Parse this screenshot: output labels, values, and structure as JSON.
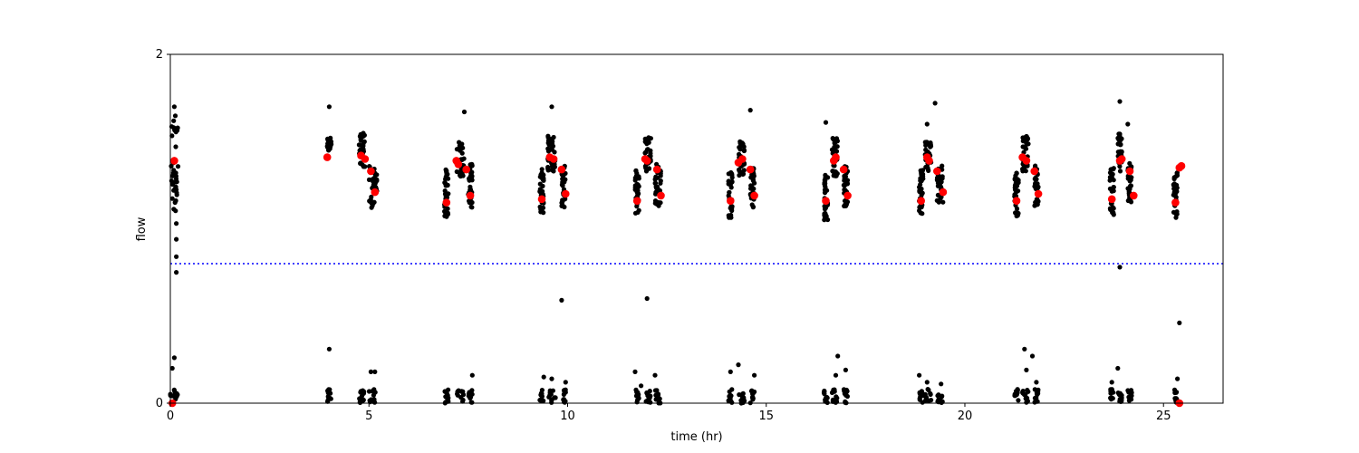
{
  "chart_data": {
    "type": "scatter",
    "title": "",
    "xlabel": "time (hr)",
    "ylabel": "flow",
    "xlim": [
      0,
      26.5
    ],
    "ylim": [
      0,
      2
    ],
    "xticks": [
      0,
      5,
      10,
      15,
      20,
      25
    ],
    "yticks": [
      0,
      2
    ],
    "grid": false,
    "threshold_line": {
      "y": 0.8,
      "color": "#0000ff",
      "style": "dotted"
    },
    "series": [
      {
        "marker_color": "#000000",
        "marker": "dot",
        "clusters": [
          {
            "x": [
              0.0,
              0.2
            ],
            "high": [
              1.1,
              1.65
            ],
            "low": [
              0.0,
              0.08
            ]
          },
          {
            "x": [
              3.95,
              4.05
            ],
            "high": [
              1.45,
              1.52
            ],
            "low": [
              0.0,
              0.08
            ]
          },
          {
            "x": [
              4.75,
              4.9
            ],
            "high": [
              1.35,
              1.55
            ],
            "low": [
              0.0,
              0.08
            ]
          },
          {
            "x": [
              5.0,
              5.2
            ],
            "high": [
              1.12,
              1.36
            ],
            "low": [
              0.0,
              0.08
            ]
          },
          {
            "x": [
              6.9,
              7.0
            ],
            "high": [
              1.06,
              1.35
            ],
            "low": [
              0.0,
              0.08
            ]
          },
          {
            "x": [
              7.2,
              7.4
            ],
            "high": [
              1.3,
              1.5
            ],
            "low": [
              0.0,
              0.08
            ]
          },
          {
            "x": [
              7.5,
              7.6
            ],
            "high": [
              1.12,
              1.37
            ],
            "low": [
              0.0,
              0.08
            ]
          },
          {
            "x": [
              9.3,
              9.4
            ],
            "high": [
              1.09,
              1.35
            ],
            "low": [
              0.0,
              0.08
            ]
          },
          {
            "x": [
              9.5,
              9.7
            ],
            "high": [
              1.33,
              1.55
            ],
            "low": [
              0.0,
              0.08
            ]
          },
          {
            "x": [
              9.85,
              9.95
            ],
            "high": [
              1.12,
              1.37
            ],
            "low": [
              0.0,
              0.08
            ]
          },
          {
            "x": [
              11.7,
              11.8
            ],
            "high": [
              1.08,
              1.34
            ],
            "low": [
              0.0,
              0.08
            ]
          },
          {
            "x": [
              11.95,
              12.1
            ],
            "high": [
              1.33,
              1.53
            ],
            "low": [
              0.0,
              0.08
            ]
          },
          {
            "x": [
              12.2,
              12.35
            ],
            "high": [
              1.13,
              1.38
            ],
            "low": [
              0.0,
              0.08
            ]
          },
          {
            "x": [
              14.05,
              14.15
            ],
            "high": [
              1.06,
              1.33
            ],
            "low": [
              0.0,
              0.08
            ]
          },
          {
            "x": [
              14.3,
              14.45
            ],
            "high": [
              1.3,
              1.5
            ],
            "low": [
              0.0,
              0.08
            ]
          },
          {
            "x": [
              14.6,
              14.7
            ],
            "high": [
              1.12,
              1.37
            ],
            "low": [
              0.0,
              0.08
            ]
          },
          {
            "x": [
              16.45,
              16.55
            ],
            "high": [
              1.05,
              1.33
            ],
            "low": [
              0.0,
              0.08
            ]
          },
          {
            "x": [
              16.65,
              16.8
            ],
            "high": [
              1.3,
              1.52
            ],
            "low": [
              0.0,
              0.08
            ]
          },
          {
            "x": [
              16.95,
              17.05
            ],
            "high": [
              1.13,
              1.37
            ],
            "low": [
              0.0,
              0.08
            ]
          },
          {
            "x": [
              18.85,
              18.95
            ],
            "high": [
              1.08,
              1.35
            ],
            "low": [
              0.0,
              0.08
            ]
          },
          {
            "x": [
              19.0,
              19.15
            ],
            "high": [
              1.33,
              1.52
            ],
            "low": [
              0.0,
              0.08
            ]
          },
          {
            "x": [
              19.3,
              19.45
            ],
            "high": [
              1.13,
              1.37
            ],
            "low": [
              0.0,
              0.08
            ]
          },
          {
            "x": [
              21.25,
              21.35
            ],
            "high": [
              1.07,
              1.32
            ],
            "low": [
              0.0,
              0.08
            ]
          },
          {
            "x": [
              21.45,
              21.6
            ],
            "high": [
              1.33,
              1.53
            ],
            "low": [
              0.0,
              0.08
            ]
          },
          {
            "x": [
              21.75,
              21.85
            ],
            "high": [
              1.13,
              1.37
            ],
            "low": [
              0.0,
              0.08
            ]
          },
          {
            "x": [
              23.65,
              23.75
            ],
            "high": [
              1.08,
              1.35
            ],
            "low": [
              0.0,
              0.08
            ]
          },
          {
            "x": [
              23.85,
              23.95
            ],
            "high": [
              1.33,
              1.55
            ],
            "low": [
              0.0,
              0.08
            ]
          },
          {
            "x": [
              24.1,
              24.2
            ],
            "high": [
              1.14,
              1.38
            ],
            "low": [
              0.0,
              0.08
            ]
          },
          {
            "x": [
              25.25,
              25.35
            ],
            "high": [
              1.06,
              1.33
            ],
            "low": [
              0.0,
              0.08
            ]
          }
        ],
        "outliers": [
          {
            "x": 0.1,
            "y": 1.7
          },
          {
            "x": 0.15,
            "y": 1.03
          },
          {
            "x": 0.15,
            "y": 0.94
          },
          {
            "x": 0.15,
            "y": 0.84
          },
          {
            "x": 0.15,
            "y": 0.75
          },
          {
            "x": 0.05,
            "y": 0.2
          },
          {
            "x": 0.1,
            "y": 0.26
          },
          {
            "x": 4.0,
            "y": 1.7
          },
          {
            "x": 4.0,
            "y": 0.31
          },
          {
            "x": 5.05,
            "y": 0.18
          },
          {
            "x": 5.15,
            "y": 0.18
          },
          {
            "x": 7.4,
            "y": 1.67
          },
          {
            "x": 7.6,
            "y": 0.16
          },
          {
            "x": 9.6,
            "y": 1.7
          },
          {
            "x": 9.85,
            "y": 0.59
          },
          {
            "x": 9.4,
            "y": 0.15
          },
          {
            "x": 9.6,
            "y": 0.14
          },
          {
            "x": 9.95,
            "y": 0.12
          },
          {
            "x": 12.0,
            "y": 0.6
          },
          {
            "x": 11.7,
            "y": 0.18
          },
          {
            "x": 12.2,
            "y": 0.16
          },
          {
            "x": 11.85,
            "y": 0.1
          },
          {
            "x": 14.6,
            "y": 1.68
          },
          {
            "x": 14.3,
            "y": 0.22
          },
          {
            "x": 14.1,
            "y": 0.18
          },
          {
            "x": 14.7,
            "y": 0.16
          },
          {
            "x": 16.5,
            "y": 1.61
          },
          {
            "x": 16.8,
            "y": 0.27
          },
          {
            "x": 16.75,
            "y": 0.16
          },
          {
            "x": 17.0,
            "y": 0.19
          },
          {
            "x": 19.05,
            "y": 1.6
          },
          {
            "x": 19.25,
            "y": 1.72
          },
          {
            "x": 18.85,
            "y": 0.16
          },
          {
            "x": 19.05,
            "y": 0.12
          },
          {
            "x": 19.4,
            "y": 0.11
          },
          {
            "x": 21.5,
            "y": 0.31
          },
          {
            "x": 21.7,
            "y": 0.27
          },
          {
            "x": 21.55,
            "y": 0.19
          },
          {
            "x": 21.8,
            "y": 0.12
          },
          {
            "x": 23.9,
            "y": 1.73
          },
          {
            "x": 24.1,
            "y": 1.6
          },
          {
            "x": 23.9,
            "y": 0.78
          },
          {
            "x": 23.85,
            "y": 0.2
          },
          {
            "x": 23.7,
            "y": 0.12
          },
          {
            "x": 25.4,
            "y": 0.46
          },
          {
            "x": 25.35,
            "y": 0.14
          }
        ]
      },
      {
        "marker_color": "#ff0000",
        "marker": "large-dot",
        "points": [
          {
            "x": 0.1,
            "y": 1.39
          },
          {
            "x": 0.05,
            "y": 0.0
          },
          {
            "x": 3.95,
            "y": 1.41
          },
          {
            "x": 4.8,
            "y": 1.42
          },
          {
            "x": 4.9,
            "y": 1.4
          },
          {
            "x": 5.05,
            "y": 1.33
          },
          {
            "x": 5.15,
            "y": 1.21
          },
          {
            "x": 6.95,
            "y": 1.15
          },
          {
            "x": 7.2,
            "y": 1.39
          },
          {
            "x": 7.25,
            "y": 1.37
          },
          {
            "x": 7.45,
            "y": 1.34
          },
          {
            "x": 7.55,
            "y": 1.19
          },
          {
            "x": 9.35,
            "y": 1.17
          },
          {
            "x": 9.55,
            "y": 1.41
          },
          {
            "x": 9.65,
            "y": 1.4
          },
          {
            "x": 9.85,
            "y": 1.34
          },
          {
            "x": 9.95,
            "y": 1.2
          },
          {
            "x": 11.75,
            "y": 1.16
          },
          {
            "x": 11.95,
            "y": 1.4
          },
          {
            "x": 12.0,
            "y": 1.39
          },
          {
            "x": 12.25,
            "y": 1.34
          },
          {
            "x": 12.35,
            "y": 1.19
          },
          {
            "x": 14.1,
            "y": 1.16
          },
          {
            "x": 14.3,
            "y": 1.38
          },
          {
            "x": 14.4,
            "y": 1.4
          },
          {
            "x": 14.6,
            "y": 1.34
          },
          {
            "x": 14.7,
            "y": 1.19
          },
          {
            "x": 16.5,
            "y": 1.16
          },
          {
            "x": 16.7,
            "y": 1.39
          },
          {
            "x": 16.75,
            "y": 1.41
          },
          {
            "x": 16.95,
            "y": 1.34
          },
          {
            "x": 17.05,
            "y": 1.19
          },
          {
            "x": 18.9,
            "y": 1.16
          },
          {
            "x": 19.05,
            "y": 1.41
          },
          {
            "x": 19.1,
            "y": 1.39
          },
          {
            "x": 19.3,
            "y": 1.33
          },
          {
            "x": 19.45,
            "y": 1.21
          },
          {
            "x": 21.3,
            "y": 1.16
          },
          {
            "x": 21.45,
            "y": 1.41
          },
          {
            "x": 21.55,
            "y": 1.39
          },
          {
            "x": 21.75,
            "y": 1.33
          },
          {
            "x": 21.85,
            "y": 1.2
          },
          {
            "x": 23.7,
            "y": 1.17
          },
          {
            "x": 23.9,
            "y": 1.39
          },
          {
            "x": 23.95,
            "y": 1.4
          },
          {
            "x": 24.15,
            "y": 1.33
          },
          {
            "x": 24.25,
            "y": 1.19
          },
          {
            "x": 25.3,
            "y": 1.15
          },
          {
            "x": 25.4,
            "y": 1.35
          },
          {
            "x": 25.45,
            "y": 1.36
          },
          {
            "x": 25.4,
            "y": 0.0
          }
        ]
      }
    ]
  }
}
